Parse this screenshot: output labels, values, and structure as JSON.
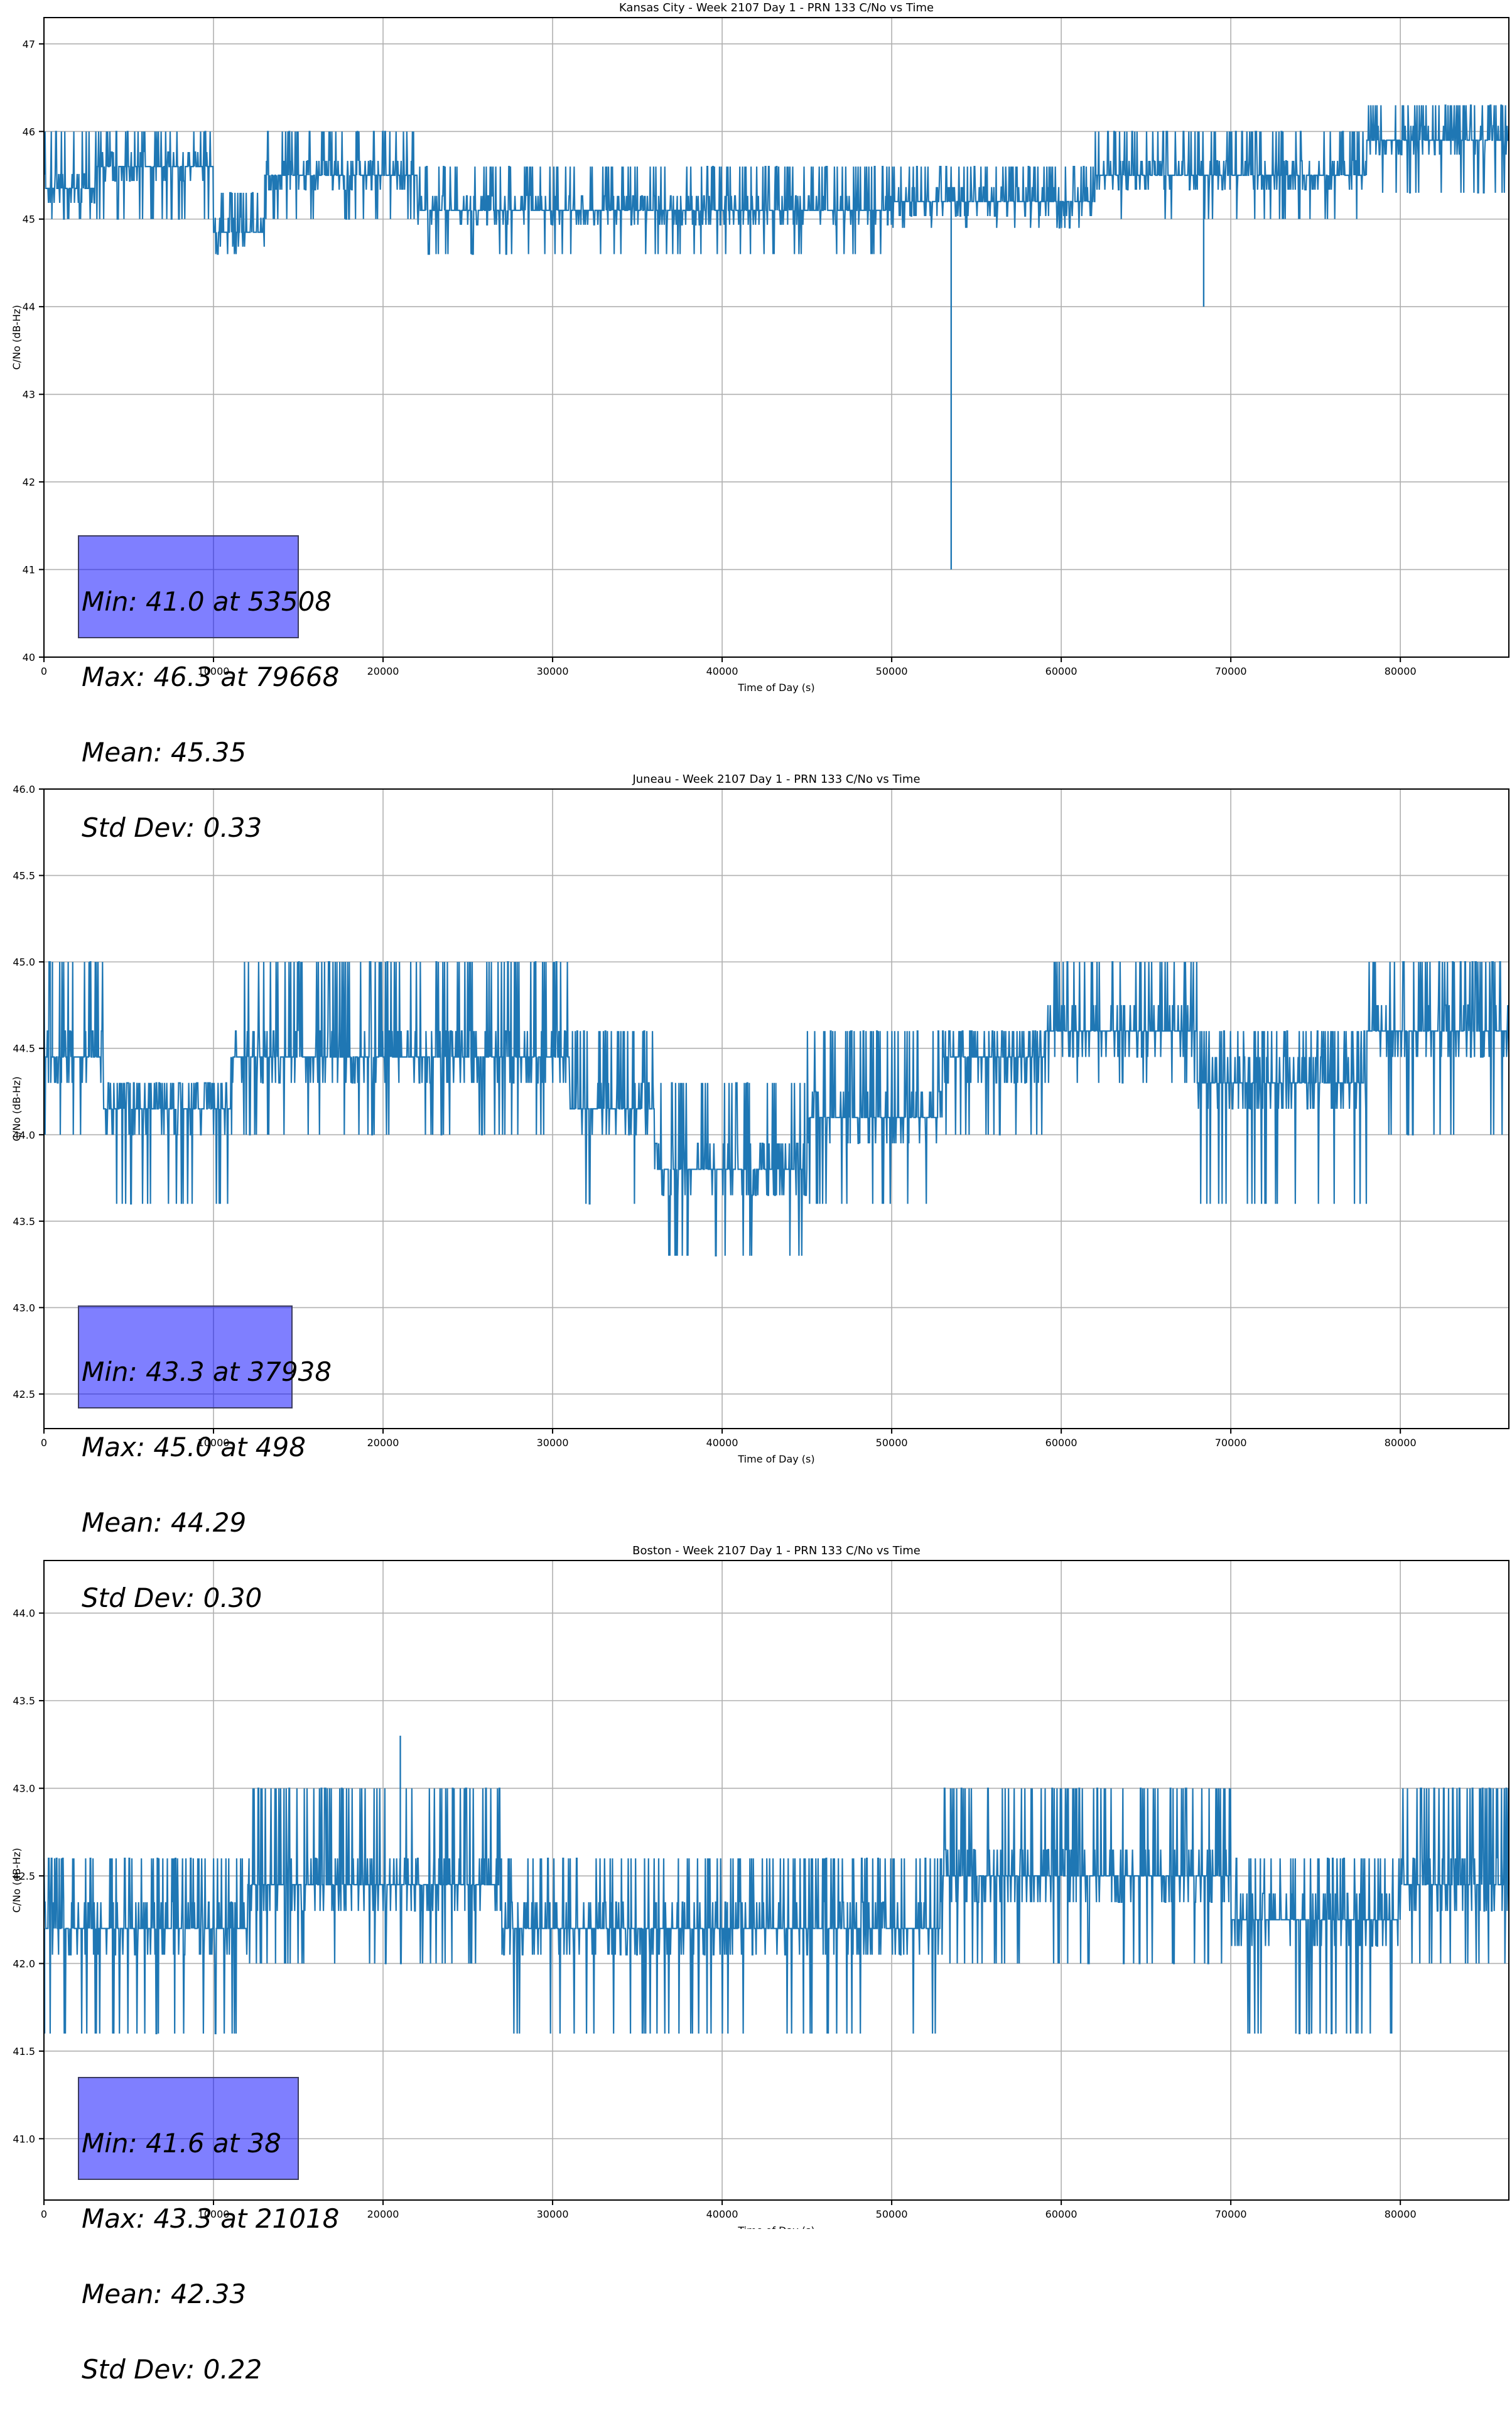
{
  "colors": {
    "series": "#1f77b4",
    "grid": "#b0b0b0",
    "axis": "#000000",
    "stats_box_fill": "#8080ff"
  },
  "chart_data": [
    {
      "type": "line",
      "title": "Kansas City - Week 2107 Day 1 - PRN 133 C/No vs Time",
      "xlabel": "Time of Day (s)",
      "ylabel": "C/No (dB-Hz)",
      "xlim": [
        0,
        86400
      ],
      "ylim": [
        40,
        47.3
      ],
      "xticks": [
        0,
        10000,
        20000,
        30000,
        40000,
        50000,
        60000,
        70000,
        80000
      ],
      "xtick_labels": [
        "0",
        "10000",
        "20000",
        "30000",
        "40000",
        "50000",
        "60000",
        "70000",
        "80000"
      ],
      "yticks": [
        40,
        41,
        42,
        43,
        44,
        45,
        46,
        47
      ],
      "ytick_labels": [
        "40",
        "41",
        "42",
        "43",
        "44",
        "45",
        "46",
        "47"
      ],
      "grid": true,
      "quantization_step": 0.33,
      "segments": [
        {
          "x": [
            0,
            3000
          ],
          "base": 45.35,
          "spread": [
            45.0,
            46.0
          ]
        },
        {
          "x": [
            3000,
            10000
          ],
          "base": 45.6,
          "spread": [
            45.0,
            46.0
          ]
        },
        {
          "x": [
            10000,
            13000
          ],
          "base": 44.85,
          "spread": [
            44.6,
            45.3
          ]
        },
        {
          "x": [
            13000,
            22000
          ],
          "base": 45.5,
          "spread": [
            45.0,
            46.0
          ]
        },
        {
          "x": [
            22000,
            50000
          ],
          "base": 45.1,
          "spread": [
            44.6,
            45.6
          ]
        },
        {
          "x": [
            50000,
            62000
          ],
          "base": 45.2,
          "spread": [
            44.9,
            45.6
          ]
        },
        {
          "x": [
            62000,
            78000
          ],
          "base": 45.5,
          "spread": [
            45.0,
            46.0
          ]
        },
        {
          "x": [
            78000,
            86400
          ],
          "base": 45.9,
          "spread": [
            45.3,
            46.3
          ]
        }
      ],
      "spikes": [
        {
          "x": 53508,
          "y": 41.0
        },
        {
          "x": 68400,
          "y": 44.0
        }
      ],
      "stats": {
        "min": "Min: 41.0 at 53508",
        "max": "Max: 46.3 at 79668",
        "mean": "Mean: 45.35",
        "std": "Std Dev: 0.33"
      }
    },
    {
      "type": "line",
      "title": "Juneau - Week 2107 Day 1 - PRN 133 C/No vs Time",
      "xlabel": "Time of Day (s)",
      "ylabel": "C/No (dB-Hz)",
      "xlim": [
        0,
        86400
      ],
      "ylim": [
        42.3,
        46.0
      ],
      "xticks": [
        0,
        10000,
        20000,
        30000,
        40000,
        50000,
        60000,
        70000,
        80000
      ],
      "xtick_labels": [
        "0",
        "10000",
        "20000",
        "30000",
        "40000",
        "50000",
        "60000",
        "70000",
        "80000"
      ],
      "yticks": [
        42.5,
        43.0,
        43.5,
        44.0,
        44.5,
        45.0,
        45.5,
        46.0
      ],
      "ytick_labels": [
        "42.5",
        "43.0",
        "43.5",
        "44.0",
        "44.5",
        "45.0",
        "45.5",
        "46.0"
      ],
      "grid": true,
      "quantization_step": 0.3,
      "segments": [
        {
          "x": [
            0,
            3500
          ],
          "base": 44.45,
          "spread": [
            44.0,
            45.0
          ]
        },
        {
          "x": [
            3500,
            11000
          ],
          "base": 44.15,
          "spread": [
            43.6,
            44.3
          ]
        },
        {
          "x": [
            11000,
            31000
          ],
          "base": 44.45,
          "spread": [
            44.0,
            45.0
          ]
        },
        {
          "x": [
            31000,
            36000
          ],
          "base": 44.15,
          "spread": [
            43.6,
            44.6
          ]
        },
        {
          "x": [
            36000,
            45000
          ],
          "base": 43.8,
          "spread": [
            43.3,
            44.3
          ]
        },
        {
          "x": [
            45000,
            53000
          ],
          "base": 44.1,
          "spread": [
            43.6,
            44.6
          ]
        },
        {
          "x": [
            53000,
            59000
          ],
          "base": 44.45,
          "spread": [
            44.0,
            44.6
          ]
        },
        {
          "x": [
            59000,
            68000
          ],
          "base": 44.6,
          "spread": [
            44.3,
            45.0
          ]
        },
        {
          "x": [
            68000,
            78000
          ],
          "base": 44.3,
          "spread": [
            43.6,
            44.6
          ]
        },
        {
          "x": [
            78000,
            86400
          ],
          "base": 44.6,
          "spread": [
            44.0,
            45.0
          ]
        }
      ],
      "spikes": [
        {
          "x": 498,
          "y": 45.0
        },
        {
          "x": 37938,
          "y": 43.3
        }
      ],
      "stats": {
        "min": "Min: 43.3 at 37938",
        "max": "Max: 45.0 at 498",
        "mean": "Mean: 44.29",
        "std": "Std Dev: 0.30"
      }
    },
    {
      "type": "line",
      "title": "Boston - Week 2107 Day 1 - PRN 133 C/No vs Time",
      "xlabel": "Time of Day (s)",
      "ylabel": "C/No (dB-Hz)",
      "xlim": [
        0,
        86400
      ],
      "ylim": [
        40.65,
        44.3
      ],
      "xticks": [
        0,
        10000,
        20000,
        30000,
        40000,
        50000,
        60000,
        70000,
        80000
      ],
      "xtick_labels": [
        "0",
        "10000",
        "20000",
        "30000",
        "40000",
        "50000",
        "60000",
        "70000",
        "80000"
      ],
      "yticks": [
        41.0,
        41.5,
        42.0,
        42.5,
        43.0,
        43.5,
        44.0
      ],
      "ytick_labels": [
        "41.0",
        "41.5",
        "42.0",
        "42.5",
        "43.0",
        "43.5",
        "44.0"
      ],
      "grid": true,
      "quantization_step": 0.3,
      "segments": [
        {
          "x": [
            0,
            12000
          ],
          "base": 42.2,
          "spread": [
            41.6,
            42.6
          ]
        },
        {
          "x": [
            12000,
            27000
          ],
          "base": 42.45,
          "spread": [
            42.0,
            43.0
          ]
        },
        {
          "x": [
            27000,
            53000
          ],
          "base": 42.2,
          "spread": [
            41.6,
            42.6
          ]
        },
        {
          "x": [
            53000,
            70000
          ],
          "base": 42.5,
          "spread": [
            42.0,
            43.0
          ]
        },
        {
          "x": [
            70000,
            80000
          ],
          "base": 42.25,
          "spread": [
            41.6,
            42.6
          ]
        },
        {
          "x": [
            80000,
            86400
          ],
          "base": 42.45,
          "spread": [
            42.0,
            43.0
          ]
        }
      ],
      "spikes": [
        {
          "x": 38,
          "y": 41.6
        },
        {
          "x": 21018,
          "y": 43.3
        }
      ],
      "stats": {
        "min": "Min: 41.6 at 38",
        "max": "Max: 43.3 at 21018",
        "mean": "Mean: 42.33",
        "std": "Std Dev: 0.22"
      }
    }
  ]
}
